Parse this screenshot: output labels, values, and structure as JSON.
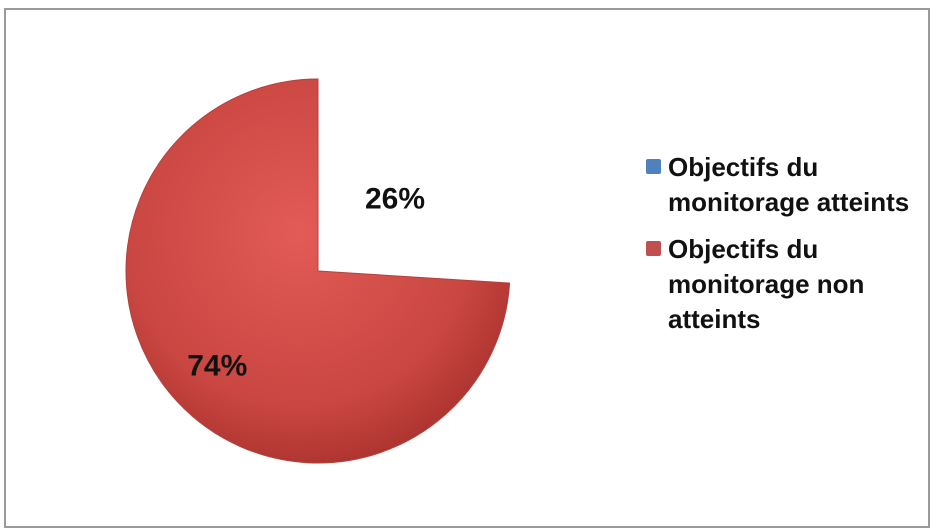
{
  "chart_data": {
    "type": "pie",
    "title": "",
    "slices": [
      {
        "label": "Objectifs du monitorage atteints",
        "value": 26,
        "value_label": "26%",
        "color": "#4f81bd"
      },
      {
        "label": "Objectifs du monitorage non atteints",
        "value": 74,
        "value_label": "74%",
        "color": "#c0504d"
      }
    ],
    "legend_position": "right",
    "colors": {
      "series_1": "#4f81bd",
      "series_2": "#c0504d",
      "series_2_light": "#e05a55",
      "series_2_dark": "#a8302c",
      "frame": "#9a9a9a"
    }
  },
  "legend": {
    "items": [
      {
        "label": "Objectifs du monitorage atteints",
        "color": "#4f81bd"
      },
      {
        "label": "Objectifs du monitorage non atteints",
        "color": "#c0504d"
      }
    ]
  }
}
